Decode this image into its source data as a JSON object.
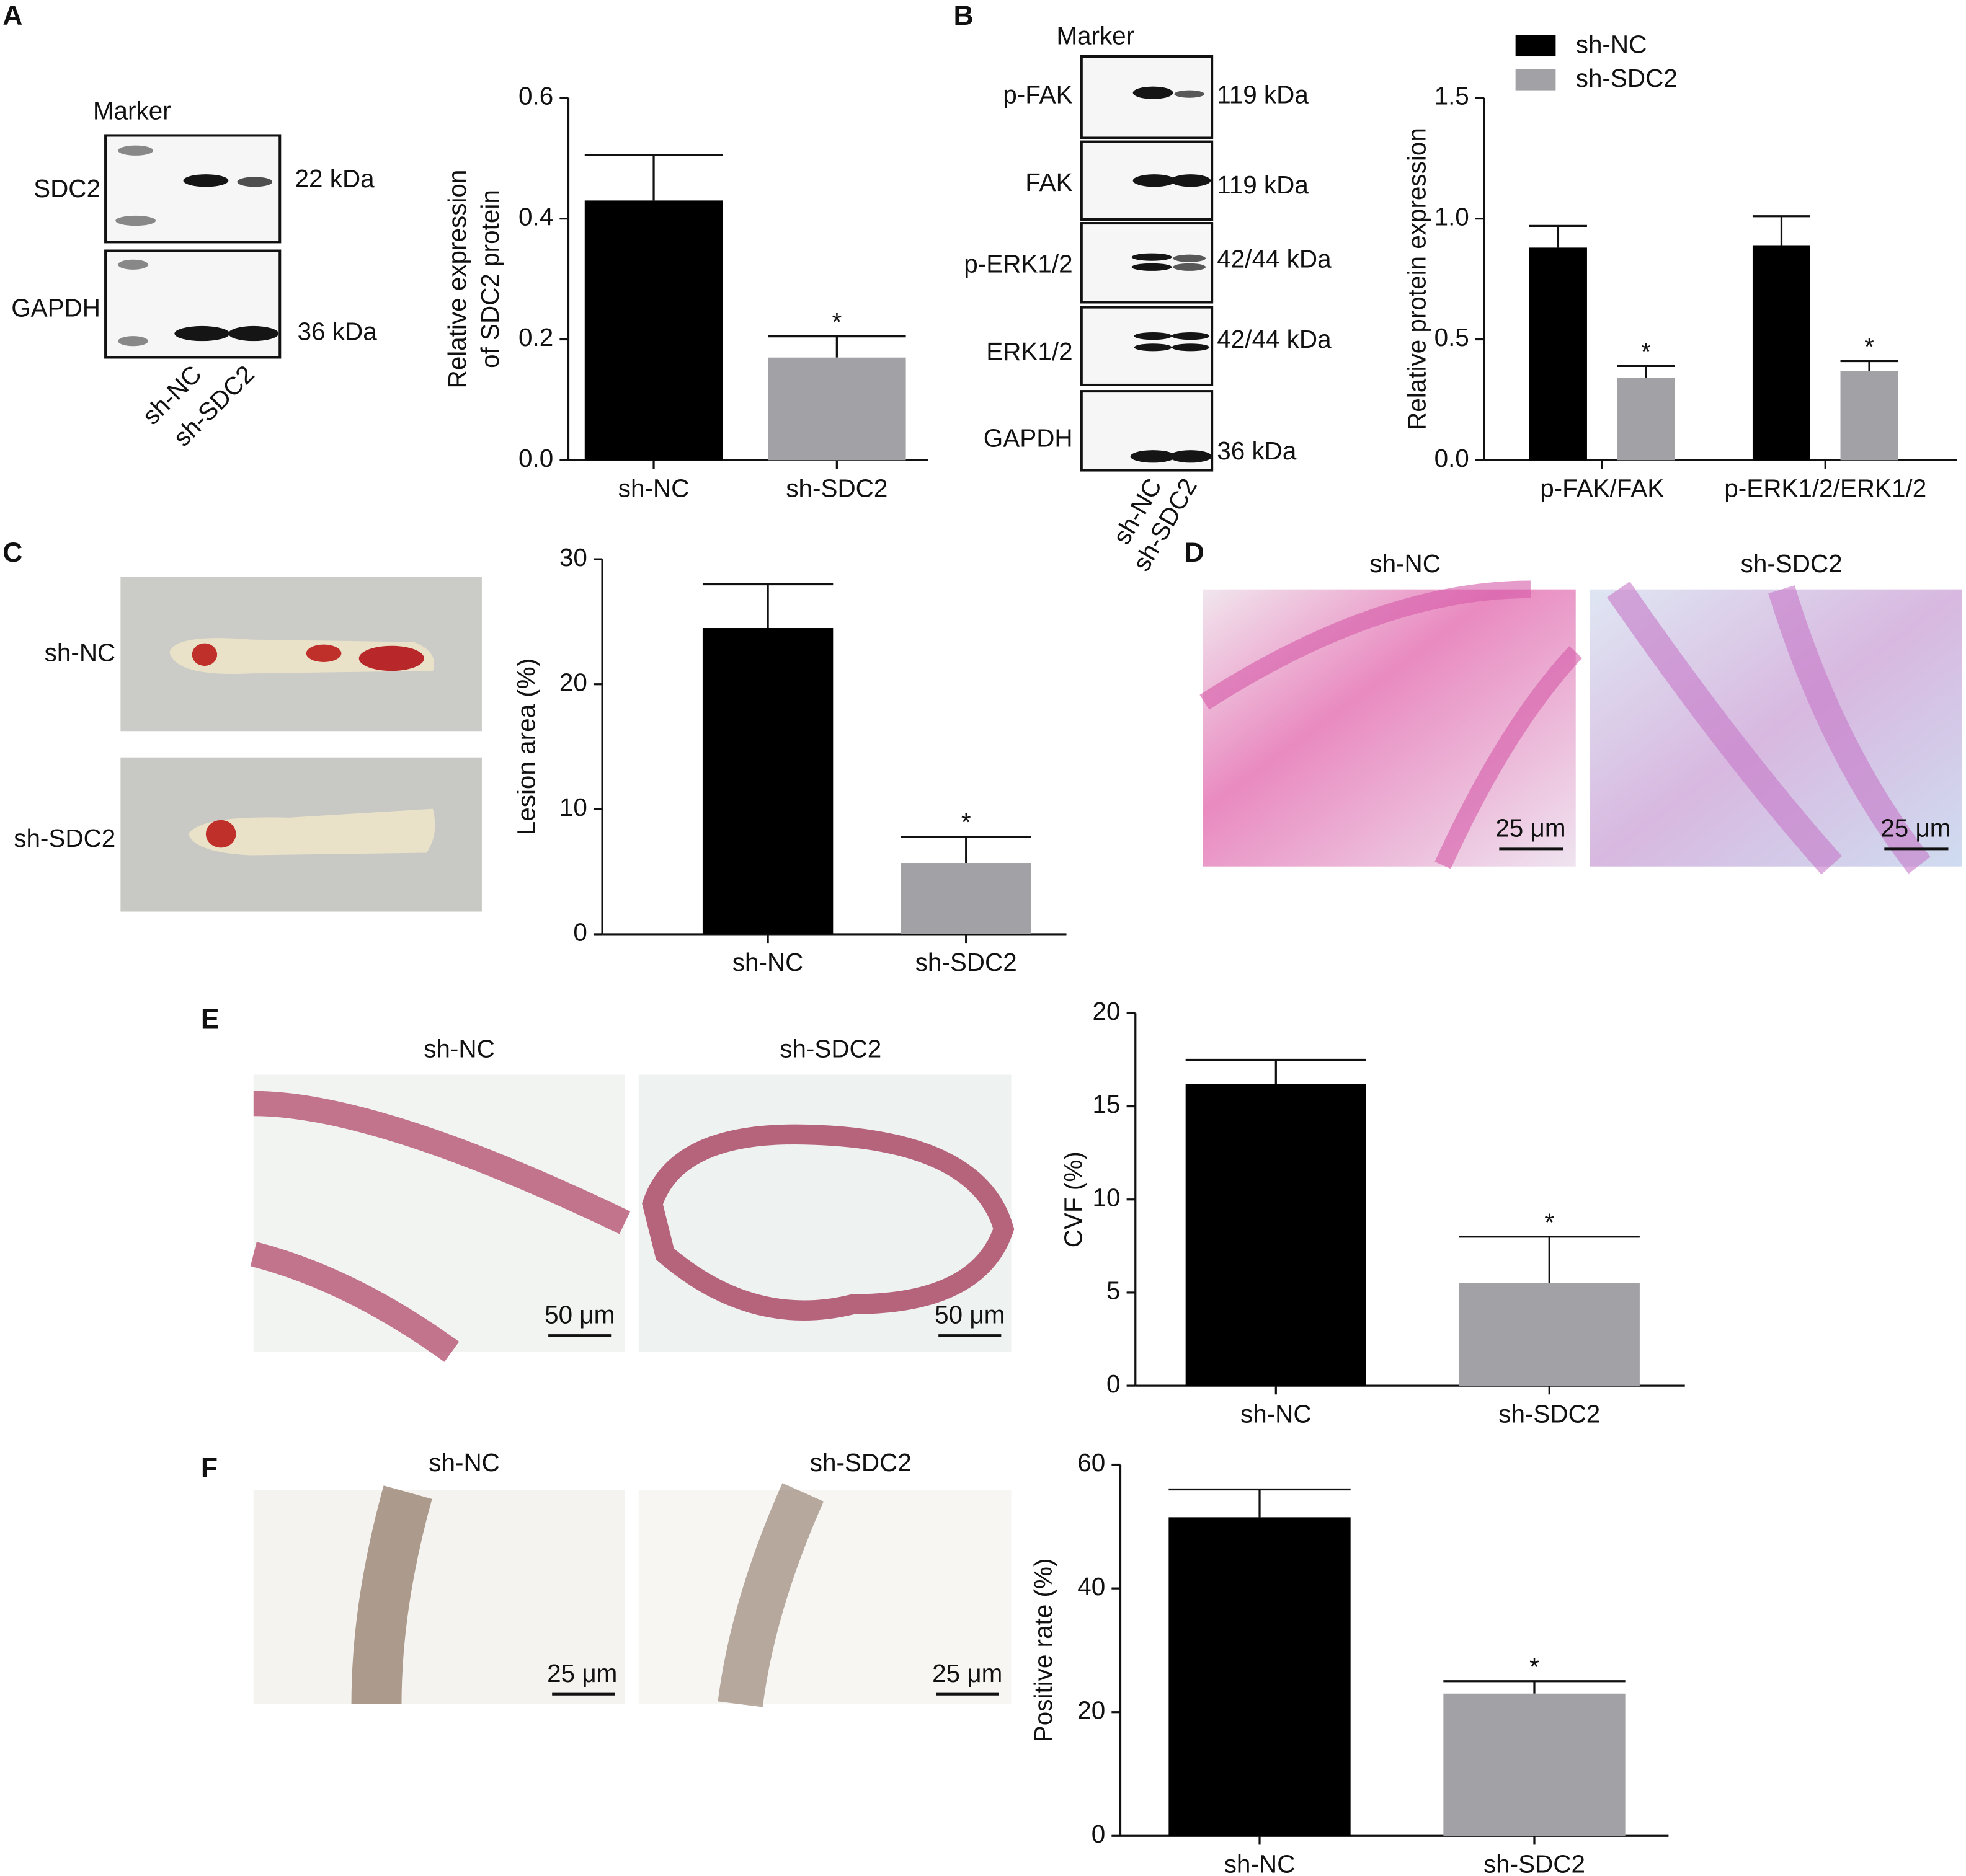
{
  "panels": [
    "A",
    "B",
    "C",
    "D",
    "E",
    "F"
  ],
  "blot_a": {
    "marker": "Marker",
    "rows": [
      "SDC2",
      "GAPDH"
    ],
    "sizes": [
      "22 kDa",
      "36 kDa"
    ],
    "lanes": [
      "sh-NC",
      "sh-SDC2"
    ]
  },
  "blot_b": {
    "marker": "Marker",
    "rows": [
      "p-FAK",
      "FAK",
      "p-ERK1/2",
      "ERK1/2",
      "GAPDH"
    ],
    "sizes": [
      "119 kDa",
      "119 kDa",
      "42/44 kDa",
      "42/44 kDa",
      "36 kDa"
    ],
    "lanes": [
      "sh-NC",
      "sh-SDC2"
    ]
  },
  "photos_c": {
    "rows": [
      "sh-NC",
      "sh-SDC2"
    ]
  },
  "stain_d": {
    "columns": [
      "sh-NC",
      "sh-SDC2"
    ],
    "scale_bar": "25 μm"
  },
  "stain_e": {
    "columns": [
      "sh-NC",
      "sh-SDC2"
    ],
    "scale_bar": "50 μm"
  },
  "stain_f": {
    "columns": [
      "sh-NC",
      "sh-SDC2"
    ],
    "scale_bar": "25 μm"
  },
  "chart_data": [
    {
      "type": "bar",
      "y_label": [
        "Relative expression",
        "of SDC2 protein"
      ],
      "categories": [
        "sh-NC",
        "sh-SDC2"
      ],
      "values": [
        0.43,
        0.17
      ],
      "errors": [
        0.075,
        0.035
      ],
      "annotations": [
        null,
        "*"
      ],
      "colors": [
        "#000000",
        "#a2a2a6"
      ],
      "ylim": [
        0,
        0.6
      ],
      "yticks": [
        {
          "value": 0,
          "label": "0.0"
        },
        0.2,
        0.4,
        0.6
      ]
    },
    {
      "type": "bar",
      "y_label": [
        "Relative protein expression"
      ],
      "categories": [
        "p-FAK/FAK",
        "p-ERK1/2/ERK1/2"
      ],
      "series": [
        {
          "name": "sh-NC",
          "color": "#000000",
          "values": [
            0.88,
            0.89
          ],
          "errors": [
            0.09,
            0.12
          ],
          "annotations": [
            null,
            null
          ]
        },
        {
          "name": "sh-SDC2",
          "color": "#a2a2a6",
          "values": [
            0.34,
            0.37
          ],
          "errors": [
            0.05,
            0.04
          ],
          "annotations": [
            "*",
            "*"
          ]
        }
      ],
      "legend": "top-left",
      "ylim": [
        0,
        1.5
      ],
      "yticks": [
        {
          "value": 0,
          "label": "0.0"
        },
        0.5,
        {
          "value": 1,
          "label": "1.0"
        },
        1.5
      ]
    },
    {
      "type": "bar",
      "y_label": [
        "Lesion area (%)"
      ],
      "categories": [
        "sh-NC",
        "sh-SDC2"
      ],
      "values": [
        24.5,
        5.7
      ],
      "errors": [
        3.5,
        2.1
      ],
      "annotations": [
        null,
        "*"
      ],
      "colors": [
        "#000000",
        "#a2a2a6"
      ],
      "ylim": [
        0,
        30
      ],
      "yticks": [
        0,
        10,
        20,
        30
      ]
    },
    {
      "type": "bar",
      "y_label": [
        "CVF (%)"
      ],
      "categories": [
        "sh-NC",
        "sh-SDC2"
      ],
      "values": [
        16.2,
        5.5
      ],
      "errors": [
        1.3,
        2.5
      ],
      "annotations": [
        null,
        "*"
      ],
      "colors": [
        "#000000",
        "#a2a2a6"
      ],
      "ylim": [
        0,
        20
      ],
      "yticks": [
        0,
        5,
        10,
        15,
        20
      ]
    },
    {
      "type": "bar",
      "y_label": [
        "Positive rate (%)"
      ],
      "categories": [
        "sh-NC",
        "sh-SDC2"
      ],
      "values": [
        51.5,
        23
      ],
      "errors": [
        4.5,
        2
      ],
      "annotations": [
        null,
        "*"
      ],
      "colors": [
        "#000000",
        "#a2a2a6"
      ],
      "ylim": [
        0,
        60
      ],
      "yticks": [
        0,
        20,
        40,
        60
      ]
    }
  ]
}
